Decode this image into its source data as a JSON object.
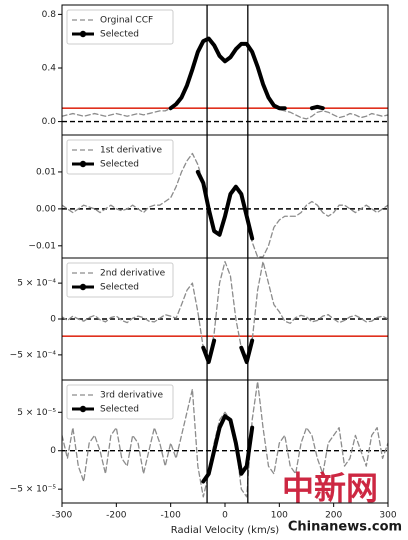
{
  "chart_data": [
    {
      "type": "line",
      "x": [
        -300,
        -290,
        -280,
        -270,
        -260,
        -250,
        -240,
        -230,
        -220,
        -210,
        -200,
        -190,
        -180,
        -170,
        -160,
        -150,
        -140,
        -130,
        -120,
        -110,
        -100,
        -90,
        -80,
        -70,
        -60,
        -50,
        -40,
        -30,
        -20,
        -10,
        0,
        10,
        20,
        30,
        40,
        50,
        60,
        70,
        80,
        90,
        100,
        110,
        120,
        130,
        140,
        150,
        160,
        170,
        180,
        190,
        200,
        210,
        220,
        230,
        240,
        250,
        260,
        270,
        280,
        290,
        300
      ],
      "series": [
        {
          "name": "Orginal CCF",
          "color": "#8c8c8c",
          "values": [
            0.04,
            0.05,
            0.06,
            0.05,
            0.04,
            0.05,
            0.06,
            0.05,
            0.04,
            0.05,
            0.06,
            0.05,
            0.04,
            0.05,
            0.06,
            0.05,
            0.06,
            0.07,
            0.08,
            0.08,
            0.1,
            0.13,
            0.18,
            0.27,
            0.39,
            0.52,
            0.6,
            0.62,
            0.57,
            0.49,
            0.45,
            0.48,
            0.54,
            0.58,
            0.58,
            0.52,
            0.41,
            0.28,
            0.18,
            0.12,
            0.09,
            0.08,
            0.07,
            0.05,
            0.03,
            0.02,
            0.04,
            0.07,
            0.08,
            0.07,
            0.05,
            0.03,
            0.04,
            0.06,
            0.05,
            0.03,
            0.04,
            0.06,
            0.05,
            0.04,
            0.05
          ]
        },
        {
          "name": "Selected",
          "color": "#000000",
          "x": [
            -100,
            -90,
            -80,
            -70,
            -60,
            -50,
            -40,
            -30,
            -20,
            -10,
            0,
            10,
            20,
            30,
            40,
            50,
            60,
            70,
            80,
            90,
            100,
            110,
            140,
            160,
            170,
            180
          ],
          "values": [
            0.1,
            0.13,
            0.18,
            0.27,
            0.39,
            0.52,
            0.6,
            0.62,
            0.57,
            0.49,
            0.45,
            0.48,
            0.54,
            0.58,
            0.58,
            0.52,
            0.41,
            0.28,
            0.18,
            0.12,
            0.1,
            0.1,
            null,
            0.1,
            0.11,
            0.1
          ]
        }
      ],
      "xlim": [
        -300,
        300
      ],
      "ylim": [
        -0.1,
        0.87
      ],
      "yticks": [
        {
          "value": 0,
          "label": "0.0"
        },
        0.4,
        0.8
      ],
      "hlines": [
        {
          "value": 0,
          "color": "#000000",
          "dashed": true
        },
        {
          "value": 0.1,
          "color": "#e0301e",
          "dashed": false
        }
      ],
      "vlines": [
        -33,
        42
      ]
    },
    {
      "type": "line",
      "x": [
        -300,
        -290,
        -280,
        -270,
        -260,
        -250,
        -240,
        -230,
        -220,
        -210,
        -200,
        -190,
        -180,
        -170,
        -160,
        -150,
        -140,
        -130,
        -120,
        -110,
        -100,
        -90,
        -80,
        -70,
        -60,
        -50,
        -40,
        -30,
        -20,
        -10,
        0,
        10,
        20,
        30,
        40,
        50,
        60,
        70,
        80,
        90,
        100,
        110,
        120,
        130,
        140,
        150,
        160,
        170,
        180,
        190,
        200,
        210,
        220,
        230,
        240,
        250,
        260,
        270,
        280,
        290,
        300
      ],
      "series": [
        {
          "name": "1st derivative",
          "color": "#8c8c8c",
          "values": [
            0.001,
            0,
            -0.001,
            0,
            0.001,
            0.0005,
            0,
            -0.001,
            0,
            0.001,
            0,
            -0.0005,
            0,
            0.001,
            0,
            -0.001,
            0.0005,
            0.001,
            0.001,
            0.002,
            0.003,
            0.006,
            0.01,
            0.013,
            0.015,
            0.012,
            0.007,
            0,
            -0.006,
            -0.007,
            -0.002,
            0.004,
            0.006,
            0.004,
            -0.002,
            -0.009,
            -0.013,
            -0.013,
            -0.01,
            -0.005,
            -0.003,
            -0.002,
            -0.002,
            -0.002,
            -0.001,
            0.001,
            0.002,
            0.001,
            -0.001,
            -0.002,
            -0.001,
            0.001,
            0.001,
            0,
            -0.001,
            0,
            0.001,
            0,
            -0.001,
            0,
            0.001
          ]
        },
        {
          "name": "Selected",
          "color": "#000000",
          "x": [
            -50,
            -40,
            -30,
            -20,
            -10,
            0,
            10,
            20,
            30,
            40,
            50
          ],
          "values": [
            0.01,
            0.007,
            0,
            -0.006,
            -0.007,
            -0.002,
            0.004,
            0.006,
            0.004,
            -0.002,
            -0.008
          ]
        }
      ],
      "xlim": [
        -300,
        300
      ],
      "ylim": [
        -0.0133,
        0.02
      ],
      "yticks": [
        {
          "value": -0.01,
          "label": "−0.01"
        },
        {
          "value": 0,
          "label": "0.00"
        },
        0.01
      ],
      "hlines": [
        {
          "value": 0,
          "color": "#000000",
          "dashed": true
        }
      ],
      "vlines": [
        -33,
        42
      ]
    },
    {
      "type": "line",
      "x": [
        -300,
        -290,
        -280,
        -270,
        -260,
        -250,
        -240,
        -230,
        -220,
        -210,
        -200,
        -190,
        -180,
        -170,
        -160,
        -150,
        -140,
        -130,
        -120,
        -110,
        -100,
        -90,
        -80,
        -70,
        -60,
        -50,
        -40,
        -30,
        -20,
        -10,
        0,
        10,
        20,
        30,
        40,
        50,
        60,
        70,
        80,
        90,
        100,
        110,
        120,
        130,
        140,
        150,
        160,
        170,
        180,
        190,
        200,
        210,
        220,
        230,
        240,
        250,
        260,
        270,
        280,
        290,
        300
      ],
      "series": [
        {
          "name": "2nd derivative",
          "color": "#8c8c8c",
          "values": [
            3e-05,
            -2e-05,
            4e-05,
            0,
            -3e-05,
            2e-05,
            5e-05,
            -1e-05,
            -4e-05,
            2e-05,
            4e-05,
            -2e-05,
            -5e-05,
            1e-05,
            4e-05,
            2e-05,
            -3e-05,
            -4e-05,
            1e-05,
            6e-05,
            4e-05,
            1e-05,
            0.0002,
            0.0004,
            0.0005,
            0.0001,
            -0.0004,
            -0.0006,
            -0.0002,
            0.0005,
            0.0008,
            0.0006,
            0,
            -0.0004,
            -0.0006,
            -0.0003,
            0.0004,
            0.0008,
            0.0005,
            0.0002,
            0.0001,
            -3e-05,
            -6e-05,
            2e-05,
            5e-05,
            3e-05,
            -4e-05,
            -2e-05,
            4e-05,
            6e-05,
            0,
            -5e-05,
            -2e-05,
            3e-05,
            5e-05,
            1e-05,
            -4e-05,
            -3e-05,
            2e-05,
            4e-05,
            0
          ]
        },
        {
          "name": "Selected",
          "color": "#000000",
          "x": [
            -40,
            -30,
            -20,
            0,
            30,
            40,
            50
          ],
          "values": [
            -0.0004,
            -0.0006,
            -0.0003,
            null,
            -0.0004,
            -0.0006,
            -0.0003
          ]
        }
      ],
      "xlim": [
        -300,
        300
      ],
      "ylim": [
        -0.00085,
        0.00085
      ],
      "yticks": [
        {
          "value": -0.0005,
          "label": "−5 × 10⁻⁴"
        },
        0,
        {
          "value": 0.0005,
          "label": "5 × 10⁻⁴"
        }
      ],
      "hlines": [
        {
          "value": 0,
          "color": "#000000",
          "dashed": true
        },
        {
          "value": -0.00024,
          "color": "#e0301e",
          "dashed": false
        }
      ],
      "vlines": [
        -33,
        42
      ]
    },
    {
      "type": "line",
      "x": [
        -300,
        -290,
        -280,
        -270,
        -260,
        -250,
        -240,
        -230,
        -220,
        -210,
        -200,
        -190,
        -180,
        -170,
        -160,
        -150,
        -140,
        -130,
        -120,
        -110,
        -100,
        -90,
        -80,
        -70,
        -60,
        -50,
        -40,
        -30,
        -20,
        -10,
        0,
        10,
        20,
        30,
        40,
        50,
        60,
        70,
        80,
        90,
        100,
        110,
        120,
        130,
        140,
        150,
        160,
        170,
        180,
        190,
        200,
        210,
        220,
        230,
        240,
        250,
        260,
        270,
        280,
        290,
        300
      ],
      "series": [
        {
          "name": "3rd derivative",
          "color": "#8c8c8c",
          "values": [
            2e-05,
            -1e-05,
            3e-05,
            -2e-05,
            -4e-05,
            1e-05,
            2e-05,
            0,
            -3e-05,
            2e-05,
            3e-05,
            -1e-05,
            -2e-05,
            2e-05,
            1e-05,
            -3e-05,
            0,
            3e-05,
            1e-05,
            -2e-05,
            1e-05,
            -1e-05,
            2e-05,
            5e-05,
            8e-05,
            -2e-05,
            -6e-05,
            -3e-05,
            1e-05,
            4e-05,
            5e-05,
            4e-05,
            1e-05,
            -5e-05,
            -6e-05,
            4e-05,
            9e-05,
            3e-05,
            -2e-05,
            -3e-05,
            1e-05,
            2e-05,
            -2e-05,
            -3e-05,
            1e-05,
            3e-05,
            2e-05,
            -1e-05,
            -3e-05,
            1e-05,
            2e-05,
            3e-05,
            -2e-05,
            -1e-05,
            2e-05,
            0,
            -2e-05,
            2e-05,
            3e-05,
            -1e-05,
            1e-05
          ]
        },
        {
          "name": "Selected",
          "color": "#000000",
          "x": [
            -40,
            -30,
            -20,
            -10,
            0,
            10,
            20,
            30,
            40,
            50
          ],
          "values": [
            -4e-05,
            -3e-05,
            0,
            3e-05,
            4.5e-05,
            4e-05,
            1e-05,
            -3e-05,
            -2e-05,
            3e-05
          ]
        }
      ],
      "xlim": [
        -300,
        300
      ],
      "ylim": [
        -6.8e-05,
        9.2e-05
      ],
      "yticks": [
        {
          "value": -5e-05,
          "label": "−5 × 10⁻⁵"
        },
        0,
        {
          "value": 5e-05,
          "label": "5 × 10⁻⁵"
        }
      ],
      "xticks": [
        -300,
        -200,
        -100,
        0,
        100,
        200,
        300
      ],
      "xlabel": "Radial Velocity (km/s)",
      "hlines": [
        {
          "value": 0,
          "color": "#000000",
          "dashed": true
        }
      ],
      "vlines": [
        -33,
        42
      ]
    }
  ],
  "watermark": {
    "logo": "中新网",
    "site": "Chinanews.com"
  }
}
